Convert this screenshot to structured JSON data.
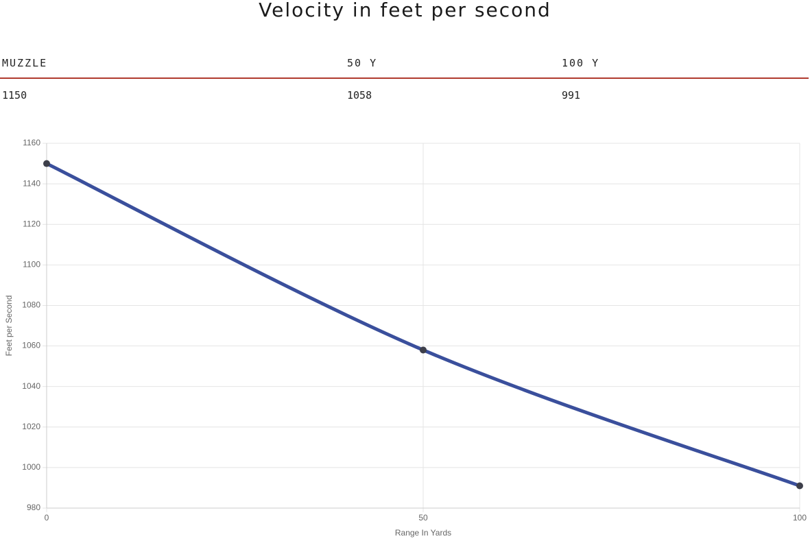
{
  "title": "Velocity in feet per second",
  "table": {
    "headers": [
      "MUZZLE",
      "50 Y",
      "100 Y"
    ],
    "rows": [
      [
        "1150",
        "1058",
        "991"
      ]
    ]
  },
  "chart_data": {
    "type": "line",
    "x": [
      0,
      50,
      100
    ],
    "series": [
      {
        "color": "#3a4f9c",
        "values": [
          1150,
          1058,
          991
        ]
      }
    ],
    "xlim": [
      0,
      100
    ],
    "xticks": [
      0,
      50,
      100
    ],
    "ylim": [
      980,
      1160
    ],
    "yticks": [
      980,
      1000,
      1020,
      1040,
      1060,
      1080,
      1100,
      1120,
      1140,
      1160
    ],
    "xlabel": "Range In Yards",
    "ylabel": "Feet per Second",
    "grid": true
  }
}
